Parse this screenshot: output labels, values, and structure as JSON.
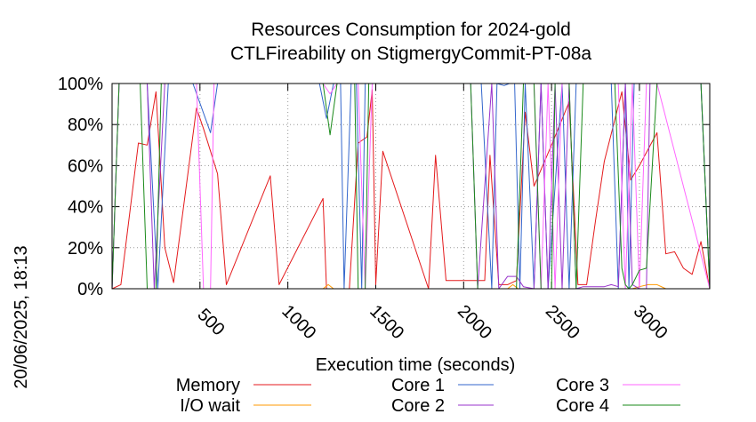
{
  "chart_data": {
    "type": "line",
    "title": [
      "Resources Consumption for 2024-gold",
      "CTLFireability on StigmergyCommit-PT-08a"
    ],
    "xlabel": "Execution time (seconds)",
    "ylabel": "",
    "xlim": [
      0,
      3400
    ],
    "ylim": [
      0,
      100
    ],
    "x_ticks": [
      500,
      1000,
      1500,
      2000,
      2500,
      3000
    ],
    "y_ticks": [
      0,
      20,
      40,
      60,
      80,
      100
    ],
    "y_tick_labels": [
      "0%",
      "20%",
      "40%",
      "60%",
      "80%",
      "100%"
    ],
    "grid": true,
    "legend_position": "bottom",
    "timestamp": "20/06/2025, 18:13",
    "series": [
      {
        "name": "Memory",
        "color": "#e41a1c",
        "x": [
          0,
          50,
          150,
          200,
          250,
          300,
          350,
          480,
          520,
          600,
          650,
          900,
          950,
          1200,
          1220,
          1260,
          1300,
          1350,
          1400,
          1450,
          1480,
          1500,
          1540,
          1800,
          1840,
          1900,
          2100,
          2120,
          2150,
          2200,
          2250,
          2300,
          2350,
          2400,
          2450,
          2500,
          2600,
          2650,
          2700,
          2750,
          2800,
          2900,
          2950,
          3000,
          3050,
          3100,
          3150,
          3200,
          3250,
          3300,
          3350,
          3400
        ],
        "y": [
          0,
          2,
          71,
          70,
          96,
          20,
          3,
          88,
          78,
          56,
          2,
          55,
          2,
          44,
          0,
          0,
          0,
          0,
          71,
          74,
          97,
          2,
          67,
          0,
          65,
          4,
          4,
          4,
          65,
          2,
          2,
          4,
          86,
          50,
          60,
          70,
          91,
          2,
          2,
          33,
          62,
          96,
          53,
          60,
          68,
          76,
          17,
          18,
          10,
          7,
          23,
          0
        ]
      },
      {
        "name": "I/O wait",
        "color": "#ff9900",
        "x": [
          0,
          1200,
          1230,
          1260,
          2000,
          2250,
          2280,
          2310,
          2900,
          2960,
          3000,
          3050,
          3100,
          3150,
          3400
        ],
        "y": [
          0,
          0,
          2,
          0,
          0,
          0,
          2,
          0,
          0,
          0,
          1,
          2,
          2,
          0,
          0
        ]
      },
      {
        "name": "Core 1",
        "color": "#3366cc",
        "x": [
          0,
          40,
          200,
          260,
          320,
          350,
          460,
          560,
          600,
          660,
          1180,
          1220,
          1260,
          1300,
          1320,
          1360,
          1390,
          1420,
          1440,
          1460,
          1500,
          2100,
          2160,
          2190,
          2230,
          2260,
          2290,
          2320,
          2350,
          2400,
          2440,
          2480,
          2560,
          2600,
          2640,
          2680,
          2840,
          2880,
          2920,
          2940,
          2970,
          3000,
          3350,
          3400
        ],
        "y": [
          0,
          100,
          100,
          0,
          100,
          100,
          100,
          76,
          100,
          100,
          100,
          83,
          100,
          100,
          0,
          100,
          100,
          0,
          100,
          100,
          100,
          100,
          0,
          100,
          99,
          100,
          100,
          0,
          100,
          0,
          100,
          0,
          100,
          0,
          100,
          100,
          100,
          0,
          100,
          0,
          100,
          100,
          100,
          0
        ]
      },
      {
        "name": "Core 2",
        "color": "#9933cc",
        "x": [
          0,
          40,
          200,
          240,
          300,
          340,
          2040,
          2080,
          2160,
          2200,
          2250,
          2300,
          2340,
          2400,
          2440,
          2480,
          2520,
          2560,
          2600,
          2640,
          2680,
          2700,
          2740,
          2800,
          2840,
          2880,
          2920,
          2960,
          3000,
          3040,
          3060,
          3350,
          3400
        ],
        "y": [
          0,
          100,
          100,
          0,
          100,
          100,
          100,
          0,
          100,
          0,
          6,
          6,
          1,
          0,
          100,
          0,
          100,
          0,
          100,
          0,
          1,
          1,
          1,
          1,
          2,
          1,
          100,
          2,
          0,
          0,
          100,
          100,
          0
        ]
      },
      {
        "name": "Core 3",
        "color": "#ff66ff",
        "x": [
          0,
          40,
          480,
          520,
          560,
          580,
          620,
          1200,
          1240,
          1280,
          1400,
          1440,
          1480,
          2400,
          2440,
          2480,
          2520,
          2560,
          2880,
          2920,
          2960,
          3000,
          3040,
          3100,
          3400
        ],
        "y": [
          0,
          100,
          100,
          0,
          0,
          100,
          100,
          100,
          95,
          100,
          100,
          0,
          100,
          100,
          0,
          100,
          0,
          100,
          100,
          0,
          100,
          0,
          100,
          100,
          0
        ]
      },
      {
        "name": "Core 4",
        "color": "#1a8a1a",
        "x": [
          0,
          40,
          160,
          200,
          250,
          280,
          1200,
          1240,
          1280,
          1320,
          1380,
          1400,
          1440,
          1460,
          2040,
          2080,
          2300,
          2340,
          2400,
          2440,
          2500,
          2520,
          2600,
          2640,
          2680,
          2860,
          2900,
          2920,
          2940,
          2960,
          3000,
          3040,
          3100,
          3350,
          3400
        ],
        "y": [
          0,
          100,
          100,
          0,
          0,
          100,
          100,
          75,
          100,
          100,
          100,
          0,
          0,
          100,
          100,
          0,
          0,
          100,
          100,
          0,
          0,
          100,
          100,
          0,
          100,
          100,
          10,
          2,
          0,
          2,
          9,
          10,
          100,
          100,
          0
        ]
      }
    ]
  }
}
